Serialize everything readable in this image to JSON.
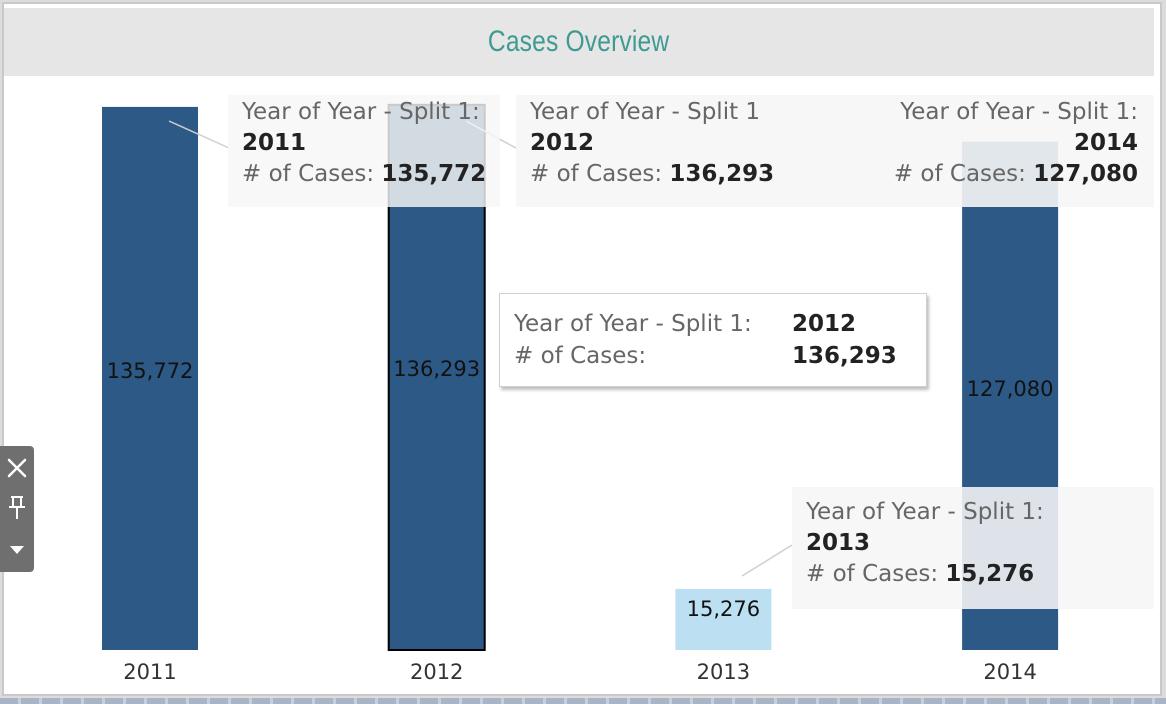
{
  "header": {
    "title": "Cases Overview"
  },
  "chart_data": {
    "type": "bar",
    "title": "Cases Overview",
    "categories": [
      "2011",
      "2012",
      "2013",
      "2014"
    ],
    "values": [
      135772,
      136293,
      15276,
      127080
    ],
    "value_labels": [
      "135,772",
      "136,293",
      "15,276",
      "127,080"
    ],
    "ylim": [
      0,
      140000
    ],
    "highlighted": "2012",
    "colors": {
      "bar": "#2d5986",
      "bar_highlight": "#bcdff2",
      "selection_outline": "#000000"
    }
  },
  "tooltips": [
    {
      "year_label": "Year of Year - Split 1:",
      "year": "2011",
      "cases_label": "# of Cases:",
      "cases": "135,772"
    },
    {
      "year_label": "Year of Year - Split 1",
      "year": "2012",
      "cases_label": "# of Cases:",
      "cases": "136,293"
    },
    {
      "year_label": "Year of Year - Split 1:",
      "year": "2014",
      "cases_label": "# of Cases:",
      "cases": "127,080"
    },
    {
      "year_label": "Year of Year - Split 1:",
      "year": "2013",
      "cases_label": "# of Cases:",
      "cases": "15,276"
    }
  ],
  "main_tooltip": {
    "year_label": "Year of Year - Split 1:",
    "year": "2012",
    "cases_label": "# of Cases:",
    "cases": "136,293"
  },
  "toolbar": {
    "icons": [
      "close-icon",
      "pin-icon",
      "caret-down-icon"
    ]
  }
}
